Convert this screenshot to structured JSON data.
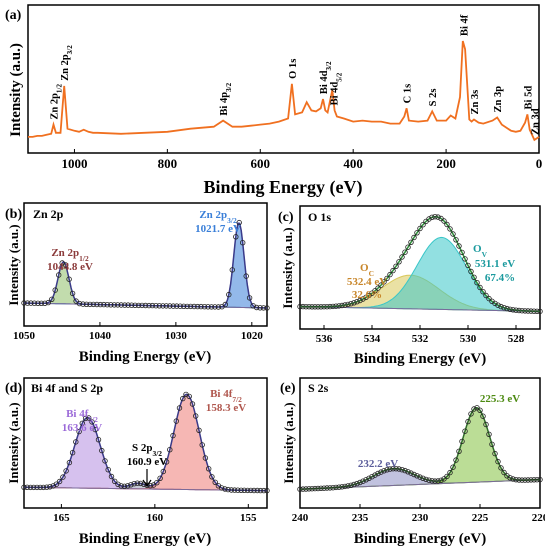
{
  "colors": {
    "survey": "#f07020",
    "zn_green": "#8fbf6a",
    "zn_purple_label": "#8b3a3a",
    "zn_blue": "#3a7fd8",
    "o1s_yellow": "#d9c85a",
    "o1s_teal": "#39c6c8",
    "o1s_envelope": "#2f8f3a",
    "bi_purple": "#b48ee0",
    "bi_red": "#ef7b77",
    "s2s_purple": "#8e90c5",
    "s2s_green": "#84c13f",
    "label_orange": "#c8862a",
    "label_teal": "#1b9a9e",
    "label_purple": "#9b6ad8",
    "label_brown": "#b0574e",
    "label_green": "#4d8a12"
  },
  "chart_data": [
    {
      "panel": "(a)",
      "type": "line",
      "title": "",
      "xlabel": "Binding Energy (eV)",
      "ylabel": "Intensity (a.u.)",
      "xlim": [
        1100,
        0
      ],
      "x_ticks": [
        "1000",
        "800",
        "600",
        "400",
        "200",
        "0"
      ],
      "x": [
        1100,
        1090,
        1080,
        1070,
        1060,
        1050,
        1045,
        1040,
        1030,
        1022,
        1015,
        1000,
        990,
        980,
        970,
        960,
        950,
        900,
        850,
        800,
        750,
        700,
        680,
        660,
        640,
        620,
        600,
        580,
        560,
        540,
        532,
        525,
        510,
        500,
        490,
        480,
        470,
        465,
        460,
        455,
        445,
        440,
        435,
        420,
        400,
        380,
        360,
        340,
        320,
        300,
        290,
        285,
        280,
        260,
        240,
        230,
        220,
        200,
        190,
        180,
        170,
        164,
        159,
        150,
        145,
        140,
        130,
        120,
        100,
        90,
        80,
        60,
        50,
        40,
        30,
        25,
        20,
        10,
        0
      ],
      "y": [
        0.06,
        0.06,
        0.07,
        0.07,
        0.08,
        0.09,
        0.18,
        0.1,
        0.1,
        0.56,
        0.14,
        0.12,
        0.11,
        0.13,
        0.11,
        0.1,
        0.1,
        0.09,
        0.1,
        0.11,
        0.14,
        0.16,
        0.22,
        0.16,
        0.16,
        0.17,
        0.18,
        0.19,
        0.21,
        0.24,
        0.58,
        0.28,
        0.3,
        0.4,
        0.32,
        0.31,
        0.34,
        0.43,
        0.32,
        0.3,
        0.52,
        0.32,
        0.26,
        0.24,
        0.21,
        0.22,
        0.21,
        0.21,
        0.19,
        0.19,
        0.26,
        0.34,
        0.22,
        0.21,
        0.22,
        0.31,
        0.22,
        0.22,
        0.27,
        0.24,
        0.45,
        1.0,
        0.92,
        0.23,
        0.21,
        0.23,
        0.2,
        0.19,
        0.22,
        0.25,
        0.18,
        0.12,
        0.11,
        0.12,
        0.2,
        0.28,
        0.13,
        0.03,
        0.06
      ],
      "annotations": [
        {
          "text": "Zn 2p",
          "sub": "1/2",
          "x": 1045
        },
        {
          "text": "Zn 2p",
          "sub": "3/2",
          "x": 1022
        },
        {
          "text": "Bi 4p",
          "sub": "3/2",
          "x": 680
        },
        {
          "text": "O 1s",
          "sub": "",
          "x": 532
        },
        {
          "text": "Bi 4d",
          "sub": "3/2",
          "x": 465
        },
        {
          "text": "Bi 4d",
          "sub": "5/2",
          "x": 442
        },
        {
          "text": "C 1s",
          "sub": "",
          "x": 285
        },
        {
          "text": "S 2s",
          "sub": "",
          "x": 230
        },
        {
          "text": "Bi 4f",
          "sub": "",
          "x": 162
        },
        {
          "text": "Zn 3s",
          "sub": "",
          "x": 140
        },
        {
          "text": "Zn 3p",
          "sub": "",
          "x": 90
        },
        {
          "text": "Bi 5d",
          "sub": "",
          "x": 25
        },
        {
          "text": "Zn 3d",
          "sub": "",
          "x": 10
        }
      ]
    },
    {
      "panel": "(b)",
      "type": "line",
      "title": "Zn 2p",
      "xlabel": "Binding Energy (eV)",
      "ylabel": "Intensity (a.u.)",
      "xlim": [
        1050,
        1018
      ],
      "x_ticks": [
        "1050",
        "1040",
        "1030",
        "1020"
      ],
      "peaks": [
        {
          "label": "Zn 2p",
          "sub": "1/2",
          "value": "1044.8 eV",
          "center": 1044.8,
          "height": 0.42,
          "fwhm": 1.7
        },
        {
          "label": "Zn 2p",
          "sub": "3/2",
          "value": "1021.7 eV",
          "center": 1021.7,
          "height": 0.85,
          "fwhm": 1.6
        }
      ]
    },
    {
      "panel": "(c)",
      "type": "line",
      "title": "O 1s",
      "xlabel": "Binding Energy (eV)",
      "ylabel": "Intensity (a.u.)",
      "xlim": [
        537,
        527
      ],
      "x_ticks": [
        "536",
        "534",
        "532",
        "530",
        "528"
      ],
      "peaks": [
        {
          "label": "O",
          "sub": "C",
          "value": "532.4 eV",
          "percent": "32.6%",
          "center": 532.4,
          "height": 0.28,
          "fwhm": 2.8
        },
        {
          "label": "O",
          "sub": "V",
          "value": "531.1 eV",
          "percent": "67.4%",
          "center": 531.1,
          "height": 0.6,
          "fwhm": 2.4
        }
      ]
    },
    {
      "panel": "(d)",
      "type": "line",
      "title": "Bi 4f and S 2p",
      "xlabel": "Binding Energy (eV)",
      "ylabel": "Intensity (a.u.)",
      "xlim": [
        167,
        154
      ],
      "x_ticks": [
        "165",
        "160",
        "155"
      ],
      "peaks": [
        {
          "label": "Bi 4f",
          "sub": "5/2",
          "value": "163.6 eV",
          "center": 163.6,
          "height": 0.63,
          "fwhm": 1.6
        },
        {
          "label": "S 2p",
          "sub": "3/2",
          "value": "160.9 eV",
          "center": 160.9,
          "height": 0.05,
          "fwhm": 1.0
        },
        {
          "label": "Bi 4f",
          "sub": "7/2",
          "value": "158.3 eV",
          "center": 158.3,
          "height": 0.85,
          "fwhm": 1.6
        }
      ]
    },
    {
      "panel": "(e)",
      "type": "line",
      "title": "S 2s",
      "xlabel": "Binding Energy (eV)",
      "ylabel": "Intensity (a.u.)",
      "xlim": [
        240,
        220
      ],
      "x_ticks": [
        "240",
        "235",
        "230",
        "225",
        "220"
      ],
      "peaks": [
        {
          "label": "",
          "sub": "",
          "value": "232.2 eV",
          "center": 232.2,
          "height": 0.14,
          "fwhm": 4.0
        },
        {
          "label": "",
          "sub": "",
          "value": "225.3 eV",
          "center": 225.3,
          "height": 0.62,
          "fwhm": 2.6
        }
      ]
    }
  ]
}
